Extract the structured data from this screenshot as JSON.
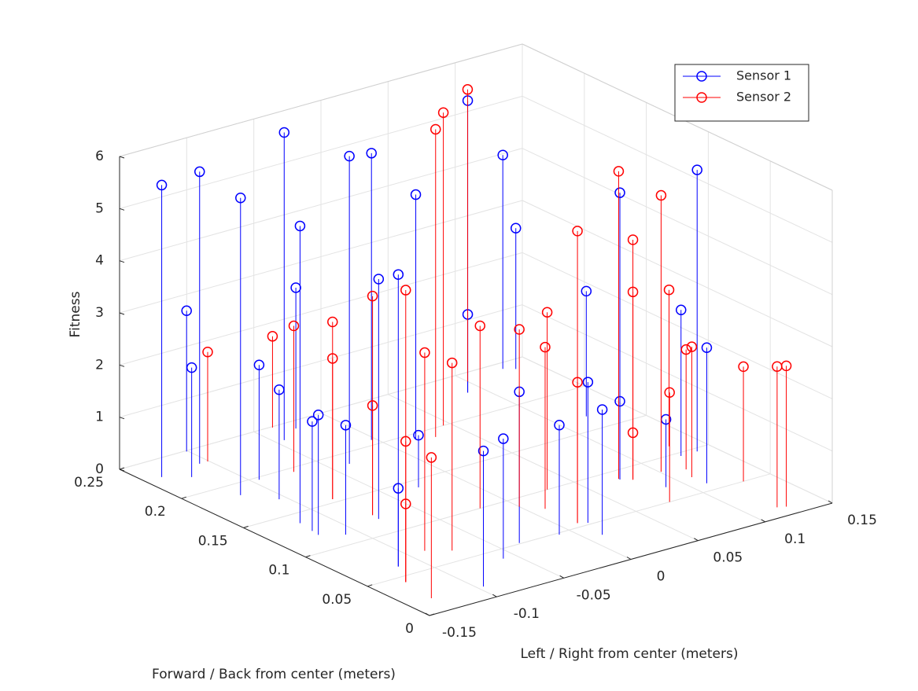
{
  "chart_data": {
    "type": "stem3",
    "xlabel": "Left / Right from center (meters)",
    "ylabel": "Forward / Back from center (meters)",
    "zlabel": "Fitness",
    "xlim": [
      -0.15,
      0.15
    ],
    "xticks": [
      -0.15,
      -0.1,
      -0.05,
      0,
      0.05,
      0.1,
      0.15
    ],
    "ylim": [
      0,
      0.25
    ],
    "yticks": [
      0,
      0.05,
      0.1,
      0.15,
      0.2,
      0.25
    ],
    "zlim": [
      0,
      6
    ],
    "zticks": [
      0,
      1,
      2,
      3,
      4,
      5,
      6
    ],
    "grid": true,
    "legend_position": "upper right",
    "series": [
      {
        "name": "Sensor 1",
        "color": "#0000ff",
        "x": [
          -0.138,
          -0.101,
          -0.124,
          -0.107,
          -0.119,
          -0.095,
          -0.105,
          -0.044,
          -0.027,
          -0.119,
          -0.121,
          -0.122,
          -0.109,
          -0.037,
          -0.003,
          -0.116,
          -0.116,
          0.018,
          -0.078,
          -0.028,
          0.089,
          0.089,
          -0.096,
          0.129,
          -0.059,
          0.135,
          -0.036,
          -0.009,
          0.121,
          0.016,
          0.011,
          0.074,
          0.074,
          0.088,
          0.126,
          0.138,
          0.111
        ],
        "y": [
          0.229,
          0.249,
          0.22,
          0.232,
          0.186,
          0.197,
          0.17,
          0.232,
          0.241,
          0.138,
          0.126,
          0.12,
          0.112,
          0.187,
          0.206,
          0.062,
          0.062,
          0.193,
          0.119,
          0.141,
          0.228,
          0.228,
          0.015,
          0.243,
          0.039,
          0.239,
          0.051,
          0.048,
          0.167,
          0.052,
          0.035,
          0.089,
          0.089,
          0.067,
          0.096,
          0.096,
          0.059
        ],
        "z": [
          5.6,
          2.7,
          2.1,
          5.6,
          5.7,
          2.2,
          2.1,
          5.9,
          2.7,
          5.7,
          2.1,
          2.3,
          2.1,
          5.9,
          5.5,
          5.6,
          1.5,
          4.7,
          4.6,
          1.0,
          5.6,
          1.5,
          2.6,
          4.1,
          2.3,
          2.7,
          2.9,
          2.1,
          2.4,
          2.7,
          2.4,
          5.5,
          1.5,
          1.3,
          2.8,
          5.4,
          2.6
        ]
      },
      {
        "name": "Sensor 2",
        "color": "#ff0000",
        "x": [
          -0.101,
          -0.037,
          -0.071,
          -0.08,
          -0.08,
          -0.077,
          -0.077,
          -0.128,
          -0.128,
          -0.128,
          -0.088,
          -0.132,
          -0.075,
          0.03,
          0.045,
          0.1,
          -0.02,
          0.0,
          0.01,
          0.011,
          0.011,
          0.03,
          0.074,
          0.08,
          0.08,
          0.08,
          0.075,
          0.101,
          0.11,
          0.115,
          0.13,
          0.13,
          0.12,
          0.125
        ],
        "y": [
          0.232,
          0.249,
          0.195,
          0.154,
          0.154,
          0.125,
          0.125,
          0.043,
          0.043,
          0.043,
          0.071,
          0.018,
          0.063,
          0.19,
          0.2,
          0.24,
          0.1,
          0.09,
          0.08,
          0.055,
          0.055,
          0.1,
          0.09,
          0.085,
          0.085,
          0.085,
          0.05,
          0.085,
          0.07,
          0.08,
          0.11,
          0.05,
          0.012,
          0.01
        ],
        "z": [
          2.1,
          1.75,
          2.8,
          3.4,
          2.7,
          4.2,
          2.1,
          5.6,
          2.7,
          1.5,
          3.8,
          2.7,
          3.6,
          5.9,
          6.0,
          5.6,
          3.5,
          3.4,
          3.1,
          5.6,
          2.7,
          3.4,
          5.9,
          4.6,
          3.6,
          0.9,
          2.1,
          5.3,
          2.5,
          2.3,
          3.0,
          2.2,
          2.7,
          2.7
        ]
      }
    ]
  }
}
